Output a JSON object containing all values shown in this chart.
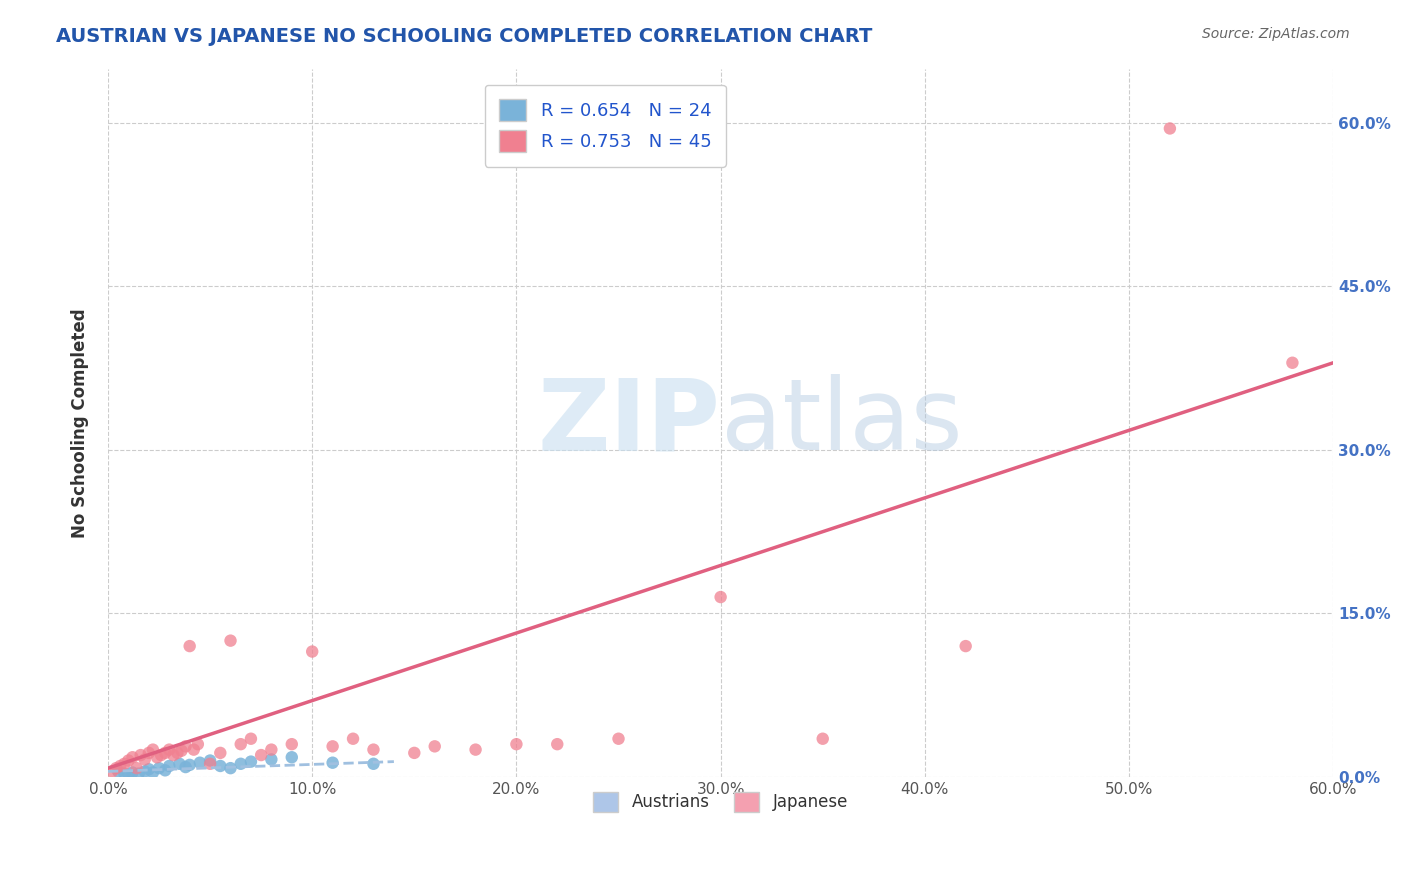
{
  "title": "AUSTRIAN VS JAPANESE NO SCHOOLING COMPLETED CORRELATION CHART",
  "source": "Source: ZipAtlas.com",
  "ylabel": "No Schooling Completed",
  "xlabel_ticks": [
    "0.0%",
    "10.0%",
    "20.0%",
    "30.0%",
    "40.0%",
    "50.0%",
    "60.0%"
  ],
  "ytick_labels": [
    "0.0%",
    "15.0%",
    "30.0%",
    "45.0%",
    "60.0%"
  ],
  "ytick_positions": [
    0.0,
    0.15,
    0.3,
    0.45,
    0.6
  ],
  "xlim": [
    0.0,
    0.6
  ],
  "ylim": [
    0.0,
    0.65
  ],
  "legend_bottom_colors": [
    "#aec6e8",
    "#f4a0b0"
  ],
  "austrians_scatter": [
    [
      0.005,
      0.005
    ],
    [
      0.008,
      0.003
    ],
    [
      0.01,
      0.002
    ],
    [
      0.012,
      0.004
    ],
    [
      0.015,
      0.003
    ],
    [
      0.018,
      0.005
    ],
    [
      0.02,
      0.007
    ],
    [
      0.022,
      0.004
    ],
    [
      0.025,
      0.008
    ],
    [
      0.028,
      0.006
    ],
    [
      0.03,
      0.01
    ],
    [
      0.035,
      0.012
    ],
    [
      0.038,
      0.009
    ],
    [
      0.04,
      0.011
    ],
    [
      0.045,
      0.013
    ],
    [
      0.05,
      0.015
    ],
    [
      0.055,
      0.01
    ],
    [
      0.06,
      0.008
    ],
    [
      0.065,
      0.012
    ],
    [
      0.07,
      0.014
    ],
    [
      0.08,
      0.016
    ],
    [
      0.09,
      0.018
    ],
    [
      0.11,
      0.013
    ],
    [
      0.13,
      0.012
    ]
  ],
  "japanese_scatter": [
    [
      0.002,
      0.005
    ],
    [
      0.004,
      0.008
    ],
    [
      0.006,
      0.01
    ],
    [
      0.008,
      0.012
    ],
    [
      0.01,
      0.015
    ],
    [
      0.012,
      0.018
    ],
    [
      0.014,
      0.008
    ],
    [
      0.016,
      0.02
    ],
    [
      0.018,
      0.016
    ],
    [
      0.02,
      0.022
    ],
    [
      0.022,
      0.025
    ],
    [
      0.024,
      0.018
    ],
    [
      0.026,
      0.02
    ],
    [
      0.028,
      0.022
    ],
    [
      0.03,
      0.025
    ],
    [
      0.032,
      0.02
    ],
    [
      0.034,
      0.022
    ],
    [
      0.036,
      0.024
    ],
    [
      0.038,
      0.028
    ],
    [
      0.04,
      0.12
    ],
    [
      0.042,
      0.025
    ],
    [
      0.044,
      0.03
    ],
    [
      0.05,
      0.012
    ],
    [
      0.055,
      0.022
    ],
    [
      0.06,
      0.125
    ],
    [
      0.065,
      0.03
    ],
    [
      0.07,
      0.035
    ],
    [
      0.075,
      0.02
    ],
    [
      0.08,
      0.025
    ],
    [
      0.09,
      0.03
    ],
    [
      0.1,
      0.115
    ],
    [
      0.11,
      0.028
    ],
    [
      0.12,
      0.035
    ],
    [
      0.13,
      0.025
    ],
    [
      0.15,
      0.022
    ],
    [
      0.16,
      0.028
    ],
    [
      0.18,
      0.025
    ],
    [
      0.2,
      0.03
    ],
    [
      0.22,
      0.03
    ],
    [
      0.25,
      0.035
    ],
    [
      0.3,
      0.165
    ],
    [
      0.35,
      0.035
    ],
    [
      0.42,
      0.12
    ],
    [
      0.52,
      0.595
    ],
    [
      0.58,
      0.38
    ]
  ],
  "austrians_line": [
    [
      0.0,
      0.005
    ],
    [
      0.14,
      0.014
    ]
  ],
  "japanese_line": [
    [
      0.0,
      0.008
    ],
    [
      0.6,
      0.38
    ]
  ],
  "scatter_color_austrians": "#7ab3d9",
  "scatter_color_japanese": "#f08090",
  "line_color_austrians": "#a0c0e0",
  "line_color_japanese": "#e06080",
  "background_color": "#ffffff",
  "grid_color": "#cccccc",
  "axis_label_color": "#333333",
  "right_ytick_color": "#4472c4",
  "corr_legend_label_color": "#2255cc",
  "title_color": "#2255aa"
}
